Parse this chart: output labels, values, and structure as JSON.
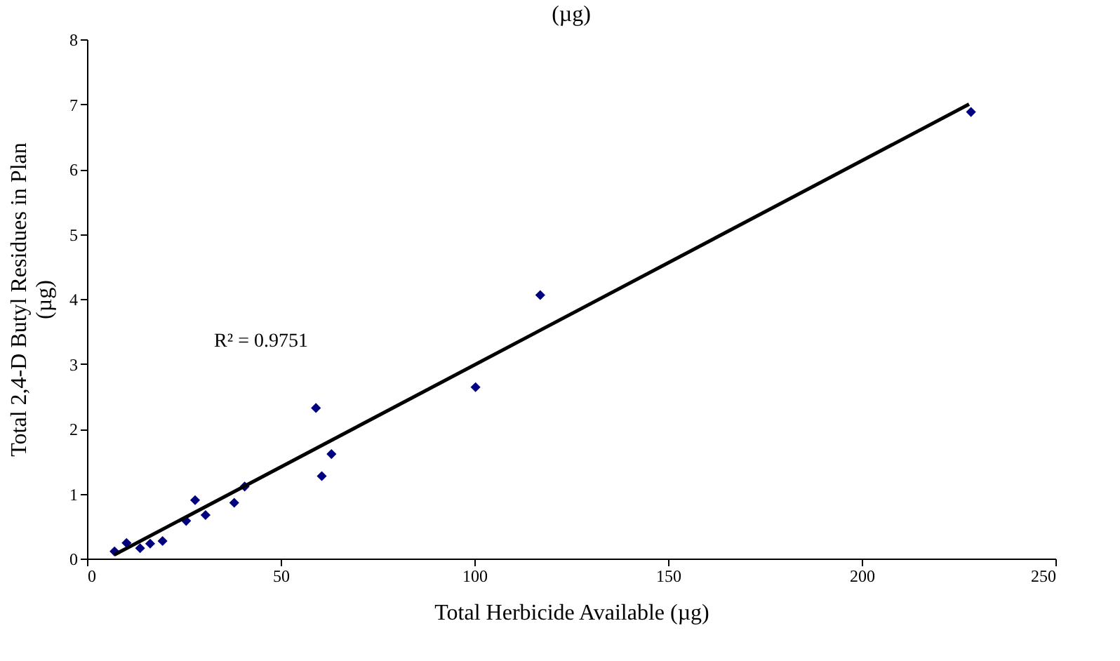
{
  "chart_data": {
    "type": "scatter",
    "title": "(µg)",
    "xlabel": "Total Herbicide Available (µg)",
    "ylabel": "Total 2,4-D Butyl Residues in Plan\n(µg)",
    "series": [
      {
        "color": "#000080",
        "marker": "diamond",
        "x": [
          7.1,
          10.2,
          13.7,
          16.3,
          19.5,
          25.6,
          27.9,
          30.6,
          38.0,
          40.7,
          59.1,
          60.6,
          63.1,
          100.3,
          117.0,
          228.2
        ],
        "values": [
          0.11,
          0.24,
          0.16,
          0.23,
          0.27,
          0.58,
          0.9,
          0.67,
          0.86,
          1.11,
          2.32,
          1.27,
          1.61,
          2.64,
          4.06,
          6.88
        ]
      },
      {
        "type": "line",
        "color": "#000000",
        "marker": "none",
        "line_style": "solid",
        "x": [
          7.1,
          227.7
        ],
        "values": [
          0.06,
          7.0
        ]
      }
    ],
    "annotations": [
      "R² = 0.9751"
    ],
    "xlim": [
      0,
      250
    ],
    "xticks": [
      0,
      50,
      100,
      150,
      200,
      250
    ],
    "ylim": [
      0,
      8
    ],
    "yticks": [
      0,
      1,
      2,
      3,
      4,
      5,
      6,
      7,
      8
    ],
    "grid": false
  }
}
